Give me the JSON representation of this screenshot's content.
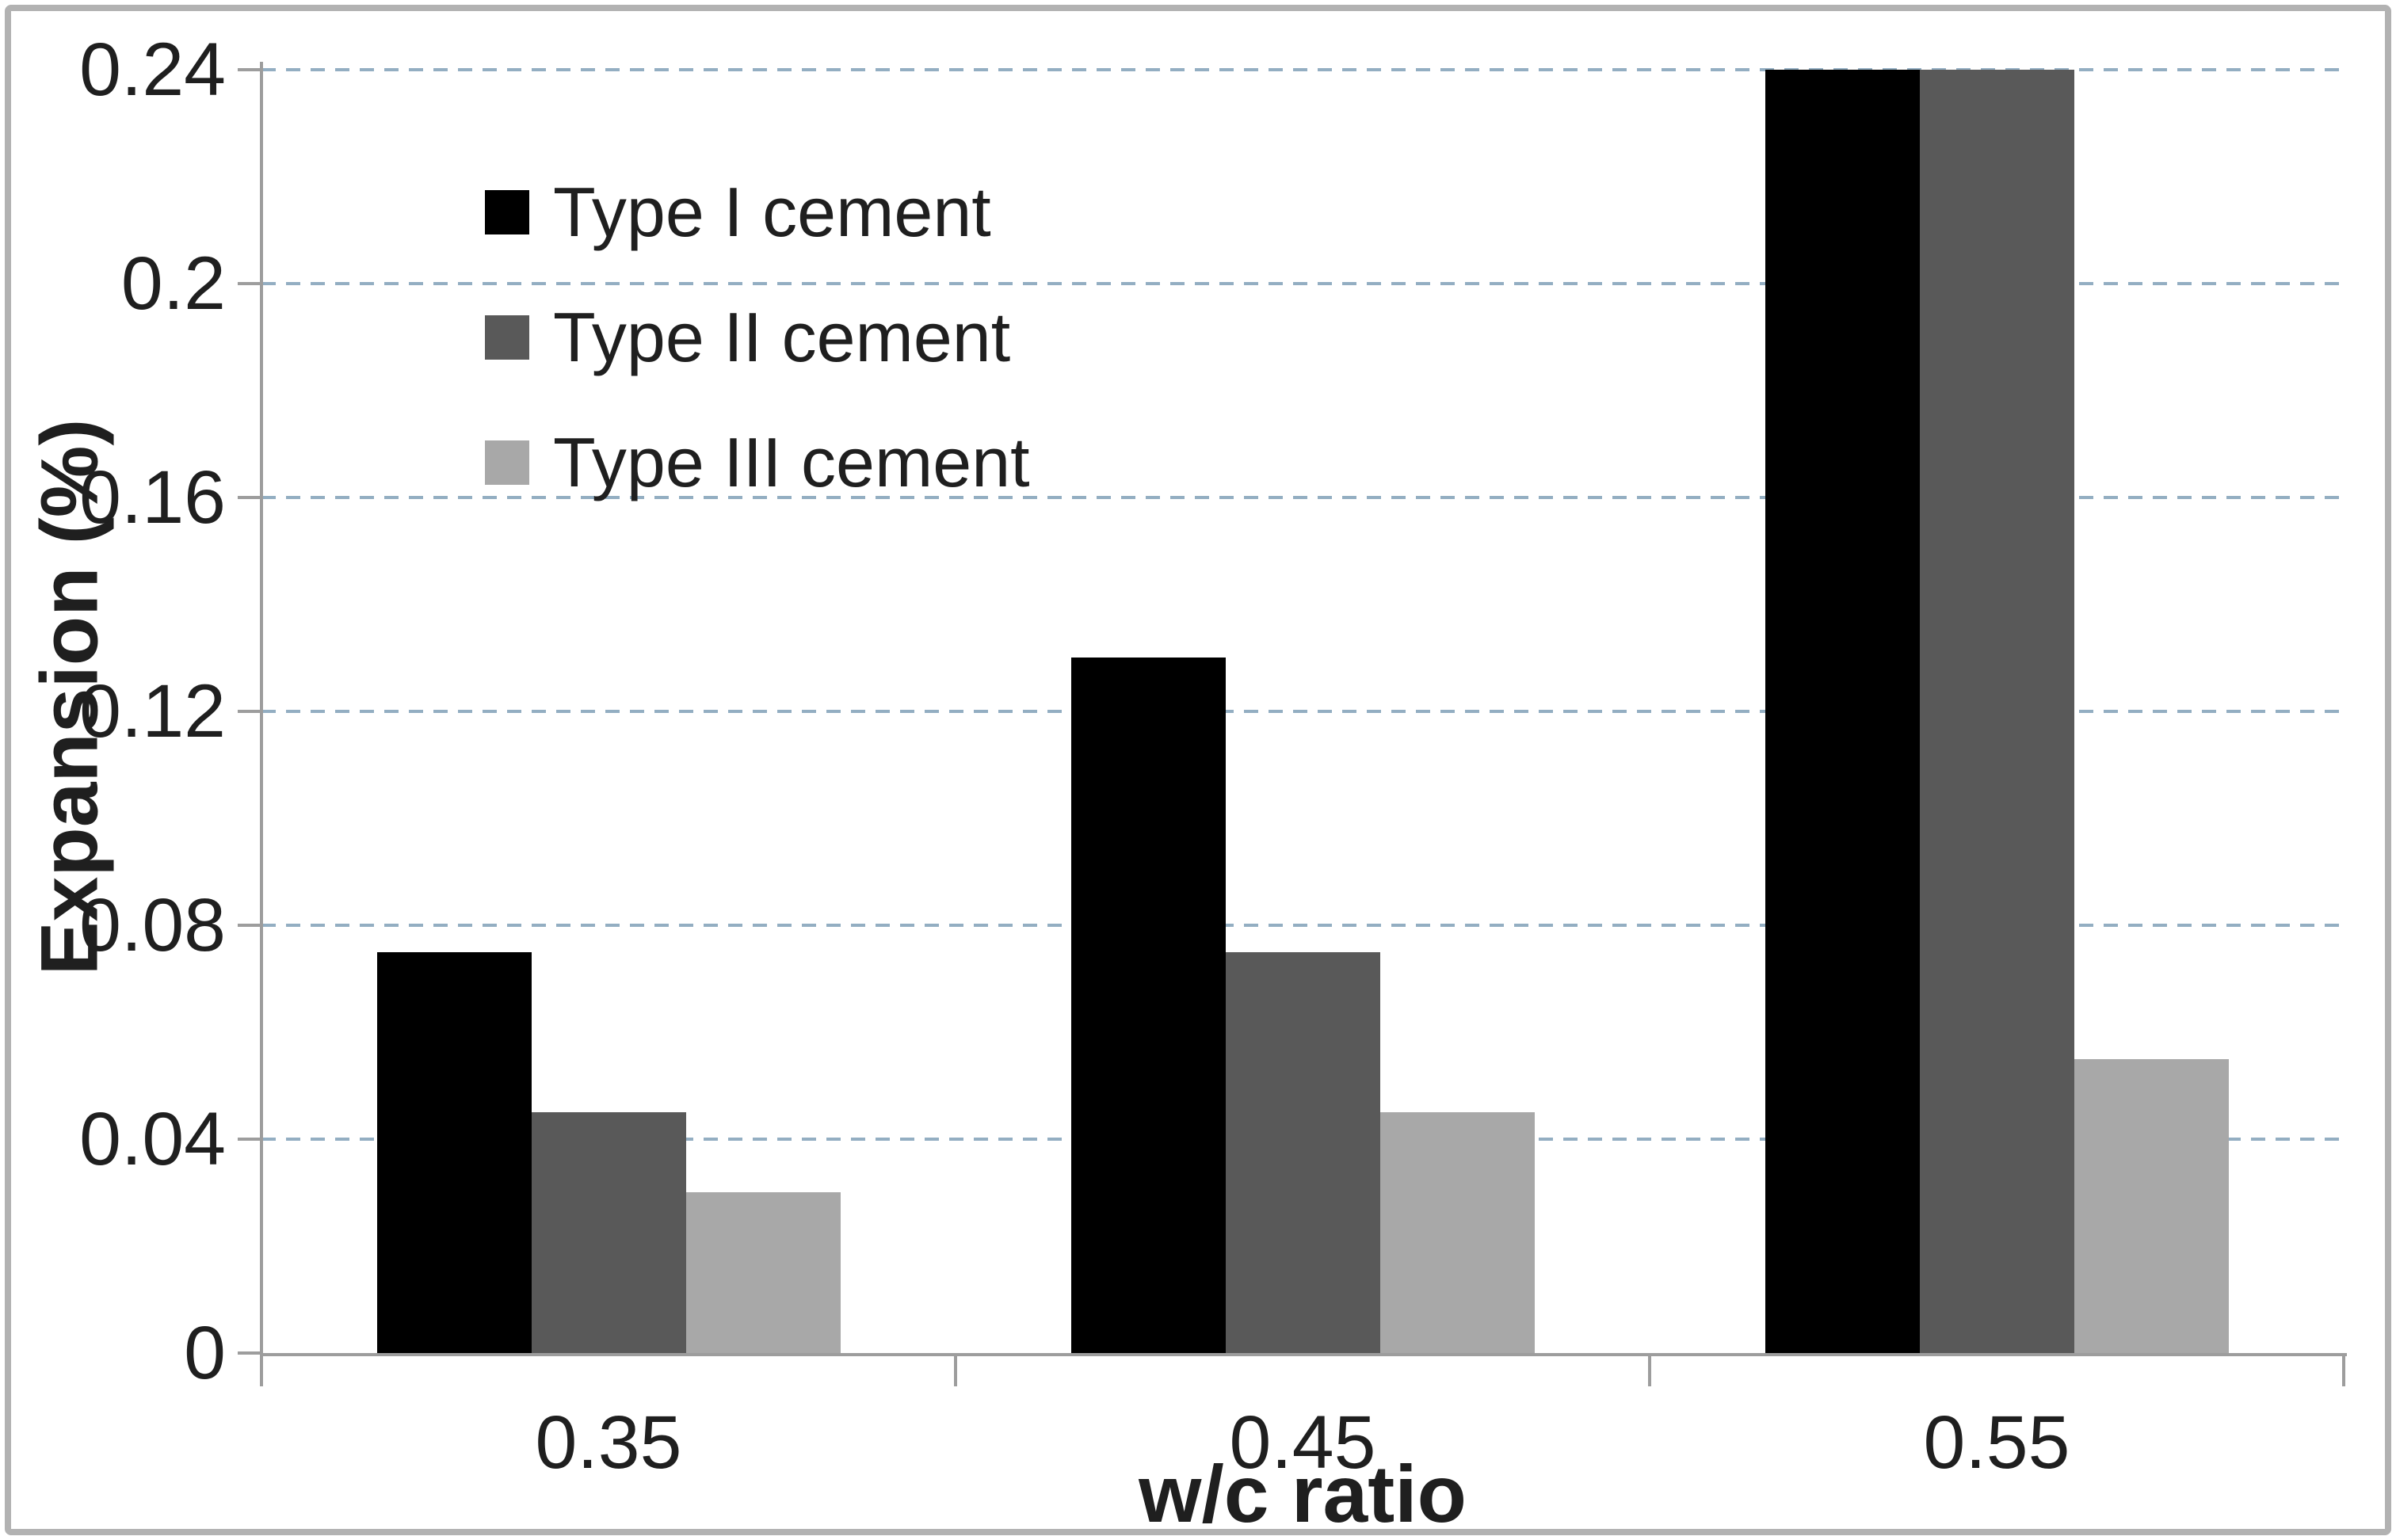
{
  "chart_data": {
    "type": "bar",
    "title": "",
    "xlabel": "w/c ratio",
    "ylabel": "Expansion (%)",
    "categories": [
      "0.35",
      "0.45",
      "0.55"
    ],
    "series": [
      {
        "name": "Type I cement",
        "color": "#000000",
        "values": [
          0.075,
          0.13,
          0.24
        ]
      },
      {
        "name": "Type II cement",
        "color": "#595959",
        "values": [
          0.045,
          0.075,
          0.24
        ]
      },
      {
        "name": "Type III cement",
        "color": "#a8a8a8",
        "values": [
          0.03,
          0.045,
          0.055
        ]
      }
    ],
    "ylim": [
      0,
      0.24
    ],
    "yticks": [
      0,
      0.04,
      0.08,
      0.12,
      0.16,
      0.2,
      0.24
    ],
    "ytick_labels": [
      "0",
      "0.04",
      "0.08",
      "0.12",
      "0.16",
      "0.2",
      "0.24"
    ],
    "grid": true,
    "gridline_style": "dashed",
    "legend_position": "upper-left-inside",
    "colors": {
      "axis": "#9d9d9d",
      "gridline": "#93aec2",
      "tick_text": "#1f1f1f"
    }
  }
}
